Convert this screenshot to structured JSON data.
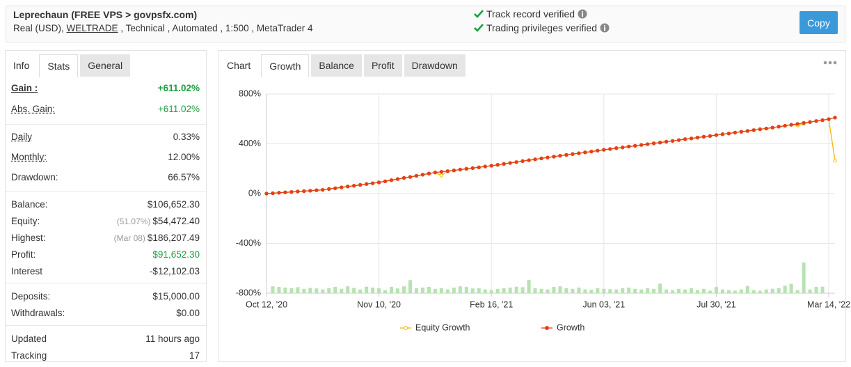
{
  "header": {
    "title": "Leprechaun (FREE VPS > govpsfx.com)",
    "account": "Real (USD),",
    "broker": "WELTRADE",
    "details": ", Technical , Automated , 1:500 , MetaTrader 4",
    "verified": [
      "Track record verified",
      "Trading privileges verified"
    ],
    "button": "Copy"
  },
  "stats_panel": {
    "tabs": [
      "Info",
      "Stats",
      "General"
    ],
    "active": 1,
    "groups": [
      {
        "rows": [
          {
            "label": "Gain :",
            "value": "+611.02%",
            "color": "#1e9e3e",
            "bold": true,
            "underline": true
          },
          {
            "label": "Abs. Gain:",
            "value": "+611.02%",
            "color": "#1e9e3e",
            "underline": true
          }
        ]
      },
      {
        "rows": [
          {
            "label": "Daily",
            "value": "0.33%",
            "underline": true
          },
          {
            "label": "Monthly:",
            "value": "12.00%",
            "underline": true
          },
          {
            "label": "Drawdown:",
            "value": "66.57%"
          }
        ]
      },
      {
        "rows": [
          {
            "label": "Balance:",
            "value": "$106,652.30"
          },
          {
            "label": "Equity:",
            "note": "(51.07%)",
            "value": "$54,472.40"
          },
          {
            "label": "Highest:",
            "note": "(Mar 08)",
            "value": "$186,207.49"
          },
          {
            "label": "Profit:",
            "value": "$91,652.30",
            "color": "#1e9e3e"
          },
          {
            "label": "Interest",
            "value": "-$12,102.03"
          }
        ]
      },
      {
        "rows": [
          {
            "label": "Deposits:",
            "value": "$15,000.00"
          },
          {
            "label": "Withdrawals:",
            "value": "$0.00"
          }
        ]
      },
      {
        "rows": [
          {
            "label": "Updated",
            "value": "11 hours ago"
          },
          {
            "label": "Tracking",
            "value": "17"
          }
        ]
      }
    ]
  },
  "chart_panel": {
    "heading": "Chart",
    "tabs": [
      "Growth",
      "Balance",
      "Profit",
      "Drawdown"
    ],
    "active": 0
  },
  "chart_data": {
    "type": "line",
    "categories": [
      "Oct 12, '20",
      null,
      null,
      null,
      null,
      null,
      null,
      null,
      null,
      null,
      null,
      null,
      null,
      null,
      null,
      null,
      null,
      null,
      "Nov 10, '20",
      null,
      null,
      null,
      null,
      null,
      null,
      null,
      null,
      null,
      null,
      null,
      null,
      null,
      null,
      null,
      null,
      null,
      "Feb 16, '21",
      null,
      null,
      null,
      null,
      null,
      null,
      null,
      null,
      null,
      null,
      null,
      null,
      null,
      null,
      null,
      null,
      null,
      "Jun 03, '21",
      null,
      null,
      null,
      null,
      null,
      null,
      null,
      null,
      null,
      null,
      null,
      null,
      null,
      null,
      null,
      null,
      null,
      "Jul 30, '21",
      null,
      null,
      null,
      null,
      null,
      null,
      null,
      null,
      null,
      null,
      null,
      null,
      null,
      null,
      null,
      null,
      null,
      "Mar 14, '22",
      null
    ],
    "series": [
      {
        "name": "Equity Growth",
        "color": "#f2b705",
        "values": [
          0,
          3,
          7,
          10,
          13,
          17,
          20,
          23,
          27,
          30,
          37,
          43,
          50,
          57,
          63,
          70,
          77,
          83,
          90,
          99,
          108,
          117,
          126,
          134,
          143,
          152,
          161,
          170,
          145,
          180,
          186,
          193,
          199,
          205,
          211,
          218,
          224,
          231,
          239,
          246,
          253,
          261,
          268,
          275,
          283,
          290,
          297,
          304,
          311,
          318,
          324,
          331,
          338,
          345,
          352,
          358,
          365,
          371,
          378,
          384,
          391,
          397,
          404,
          410,
          417,
          423,
          430,
          437,
          443,
          450,
          457,
          463,
          470,
          477,
          483,
          490,
          497,
          503,
          510,
          517,
          523,
          530,
          538,
          545,
          553,
          548,
          560,
          575,
          583,
          590,
          598,
          265
        ]
      },
      {
        "name": "Growth",
        "color": "#e4401a",
        "values": [
          0,
          3,
          7,
          10,
          13,
          17,
          20,
          23,
          27,
          30,
          37,
          43,
          50,
          57,
          63,
          70,
          77,
          83,
          90,
          99,
          108,
          117,
          126,
          134,
          143,
          152,
          161,
          170,
          175,
          180,
          186,
          193,
          199,
          205,
          211,
          218,
          224,
          231,
          239,
          246,
          253,
          261,
          268,
          275,
          283,
          290,
          297,
          304,
          311,
          318,
          324,
          331,
          338,
          345,
          352,
          358,
          365,
          371,
          378,
          384,
          391,
          397,
          404,
          410,
          417,
          423,
          430,
          437,
          443,
          450,
          457,
          463,
          470,
          477,
          483,
          490,
          497,
          503,
          510,
          517,
          523,
          530,
          538,
          545,
          553,
          560,
          568,
          575,
          583,
          590,
          598,
          611
        ]
      }
    ],
    "bars": {
      "color": "#b7e2b1",
      "values": [
        -800,
        -745,
        -750,
        -755,
        -760,
        -752,
        -765,
        -758,
        -762,
        -770,
        -760,
        -750,
        -765,
        -745,
        -758,
        -770,
        -748,
        -755,
        -760,
        -775,
        -750,
        -762,
        -745,
        -695,
        -760,
        -755,
        -750,
        -765,
        -760,
        -770,
        -755,
        -745,
        -750,
        -762,
        -760,
        -770,
        -775,
        -765,
        -760,
        -755,
        -748,
        -752,
        -693,
        -760,
        -765,
        -770,
        -750,
        -745,
        -760,
        -765,
        -755,
        -770,
        -772,
        -760,
        -765,
        -768,
        -770,
        -760,
        -755,
        -765,
        -770,
        -760,
        -765,
        -723,
        -770,
        -775,
        -765,
        -770,
        -760,
        -775,
        -765,
        -780,
        -750,
        -770,
        -775,
        -780,
        -770,
        -742,
        -775,
        -780,
        -770,
        -765,
        -760,
        -740,
        -725,
        -775,
        -553,
        -770,
        -750,
        -748,
        -800,
        -800
      ]
    },
    "ylim": [
      -800,
      800
    ],
    "yticks": [
      {
        "value": -800,
        "label": "-800%"
      },
      {
        "value": -400,
        "label": "-400%"
      },
      {
        "value": 0,
        "label": "0%"
      },
      {
        "value": 400,
        "label": "400%"
      },
      {
        "value": 800,
        "label": "800%"
      }
    ],
    "grid": true
  }
}
